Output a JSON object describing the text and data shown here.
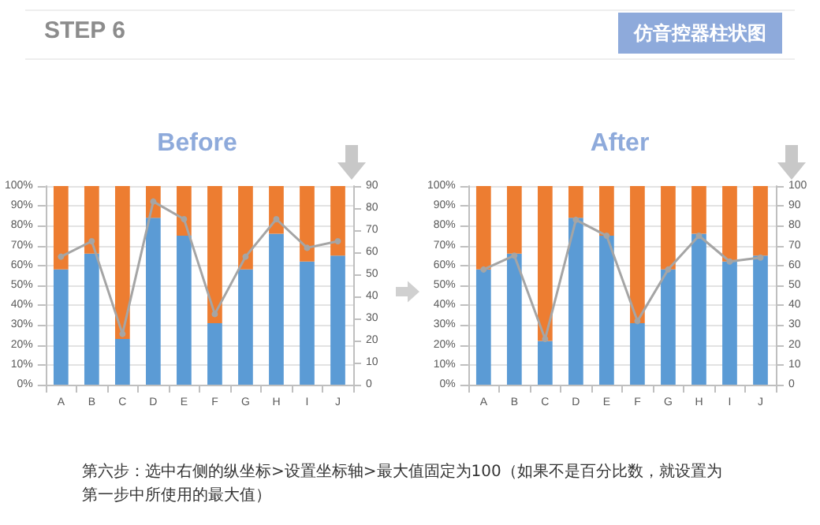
{
  "chart_data": [
    {
      "type": "other",
      "title": "STEP 6",
      "subtitle": "仿音控器柱状图",
      "annotations": [
        "第六步：选中右侧的纵坐标>设置坐标轴>最大值固定为100（如果不是百分比数，就设置为第一步中所使用的最大值）"
      ]
    },
    {
      "type": "bar",
      "title": "Before",
      "categories": [
        "A",
        "B",
        "C",
        "D",
        "E",
        "F",
        "G",
        "H",
        "I",
        "J"
      ],
      "stacked": true,
      "series": [
        {
          "color": "#5b9bd5",
          "values": [
            58,
            66,
            23,
            84,
            75,
            31,
            58,
            76,
            62,
            65
          ]
        },
        {
          "color": "#ed7d31",
          "values": [
            42,
            34,
            77,
            16,
            25,
            69,
            42,
            24,
            38,
            35
          ]
        },
        {
          "type": "line",
          "axis": "y2",
          "color": "#a5a5a5",
          "values": [
            58,
            65,
            23,
            83,
            75,
            32,
            58,
            75,
            62,
            65
          ]
        }
      ],
      "ylim": [
        0,
        100
      ],
      "yticks": [
        {
          "value": 0,
          "label": "0%"
        },
        {
          "value": 10,
          "label": "10%"
        },
        {
          "value": 20,
          "label": "20%"
        },
        {
          "value": 30,
          "label": "30%"
        },
        {
          "value": 40,
          "label": "40%"
        },
        {
          "value": 50,
          "label": "50%"
        },
        {
          "value": 60,
          "label": "60%"
        },
        {
          "value": 70,
          "label": "70%"
        },
        {
          "value": 80,
          "label": "80%"
        },
        {
          "value": 90,
          "label": "90%"
        },
        {
          "value": 100,
          "label": "100%"
        }
      ],
      "y2lim": [
        0,
        90
      ],
      "y2ticks": [
        0,
        10,
        20,
        30,
        40,
        50,
        60,
        70,
        80,
        90
      ],
      "grid": "y",
      "marker": "circle"
    },
    {
      "type": "bar",
      "title": "After",
      "categories": [
        "A",
        "B",
        "C",
        "D",
        "E",
        "F",
        "G",
        "H",
        "I",
        "J"
      ],
      "stacked": true,
      "series": [
        {
          "color": "#5b9bd5",
          "values": [
            58,
            66,
            22,
            84,
            75,
            31,
            58,
            76,
            62,
            65
          ]
        },
        {
          "color": "#ed7d31",
          "values": [
            42,
            34,
            78,
            16,
            25,
            69,
            42,
            24,
            38,
            35
          ]
        },
        {
          "type": "line",
          "axis": "y2",
          "color": "#a5a5a5",
          "values": [
            58,
            65,
            23,
            83,
            75,
            32,
            58,
            75,
            62,
            64
          ]
        }
      ],
      "ylim": [
        0,
        100
      ],
      "yticks": [
        {
          "value": 0,
          "label": "0%"
        },
        {
          "value": 10,
          "label": "10%"
        },
        {
          "value": 20,
          "label": "20%"
        },
        {
          "value": 30,
          "label": "30%"
        },
        {
          "value": 40,
          "label": "40%"
        },
        {
          "value": 50,
          "label": "50%"
        },
        {
          "value": 60,
          "label": "60%"
        },
        {
          "value": 70,
          "label": "70%"
        },
        {
          "value": 80,
          "label": "80%"
        },
        {
          "value": 90,
          "label": "90%"
        },
        {
          "value": 100,
          "label": "100%"
        }
      ],
      "y2lim": [
        0,
        100
      ],
      "y2ticks": [
        0,
        10,
        20,
        30,
        40,
        50,
        60,
        70,
        80,
        90,
        100
      ],
      "grid": "y",
      "marker": "circle"
    }
  ]
}
